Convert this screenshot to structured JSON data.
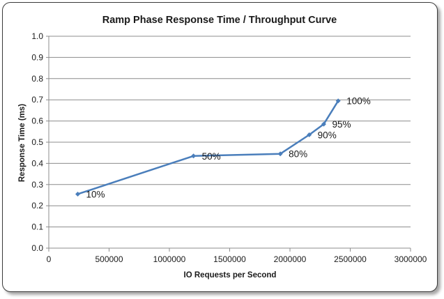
{
  "chart_data": {
    "type": "line",
    "title": "Ramp Phase Response Time / Throughput Curve",
    "xlabel": "IO Requests per Second",
    "ylabel": "Response Time (ms)",
    "xlim": [
      0,
      3000000
    ],
    "ylim": [
      0,
      1.0
    ],
    "x_ticks": [
      0,
      500000,
      1000000,
      1500000,
      2000000,
      2500000,
      3000000
    ],
    "y_ticks": [
      "0.0",
      "0.1",
      "0.2",
      "0.3",
      "0.4",
      "0.5",
      "0.6",
      "0.7",
      "0.8",
      "0.9",
      "1.0"
    ],
    "grid": true,
    "legend": "none",
    "series": [
      {
        "color": "#4a7ebb",
        "points": [
          {
            "x": 240000,
            "y": 0.255,
            "label": "10%"
          },
          {
            "x": 1200000,
            "y": 0.435,
            "label": "50%"
          },
          {
            "x": 1920000,
            "y": 0.445,
            "label": "80%"
          },
          {
            "x": 2160000,
            "y": 0.535,
            "label": "90%"
          },
          {
            "x": 2280000,
            "y": 0.585,
            "label": "95%"
          },
          {
            "x": 2400000,
            "y": 0.695,
            "label": "100%"
          }
        ]
      }
    ]
  }
}
